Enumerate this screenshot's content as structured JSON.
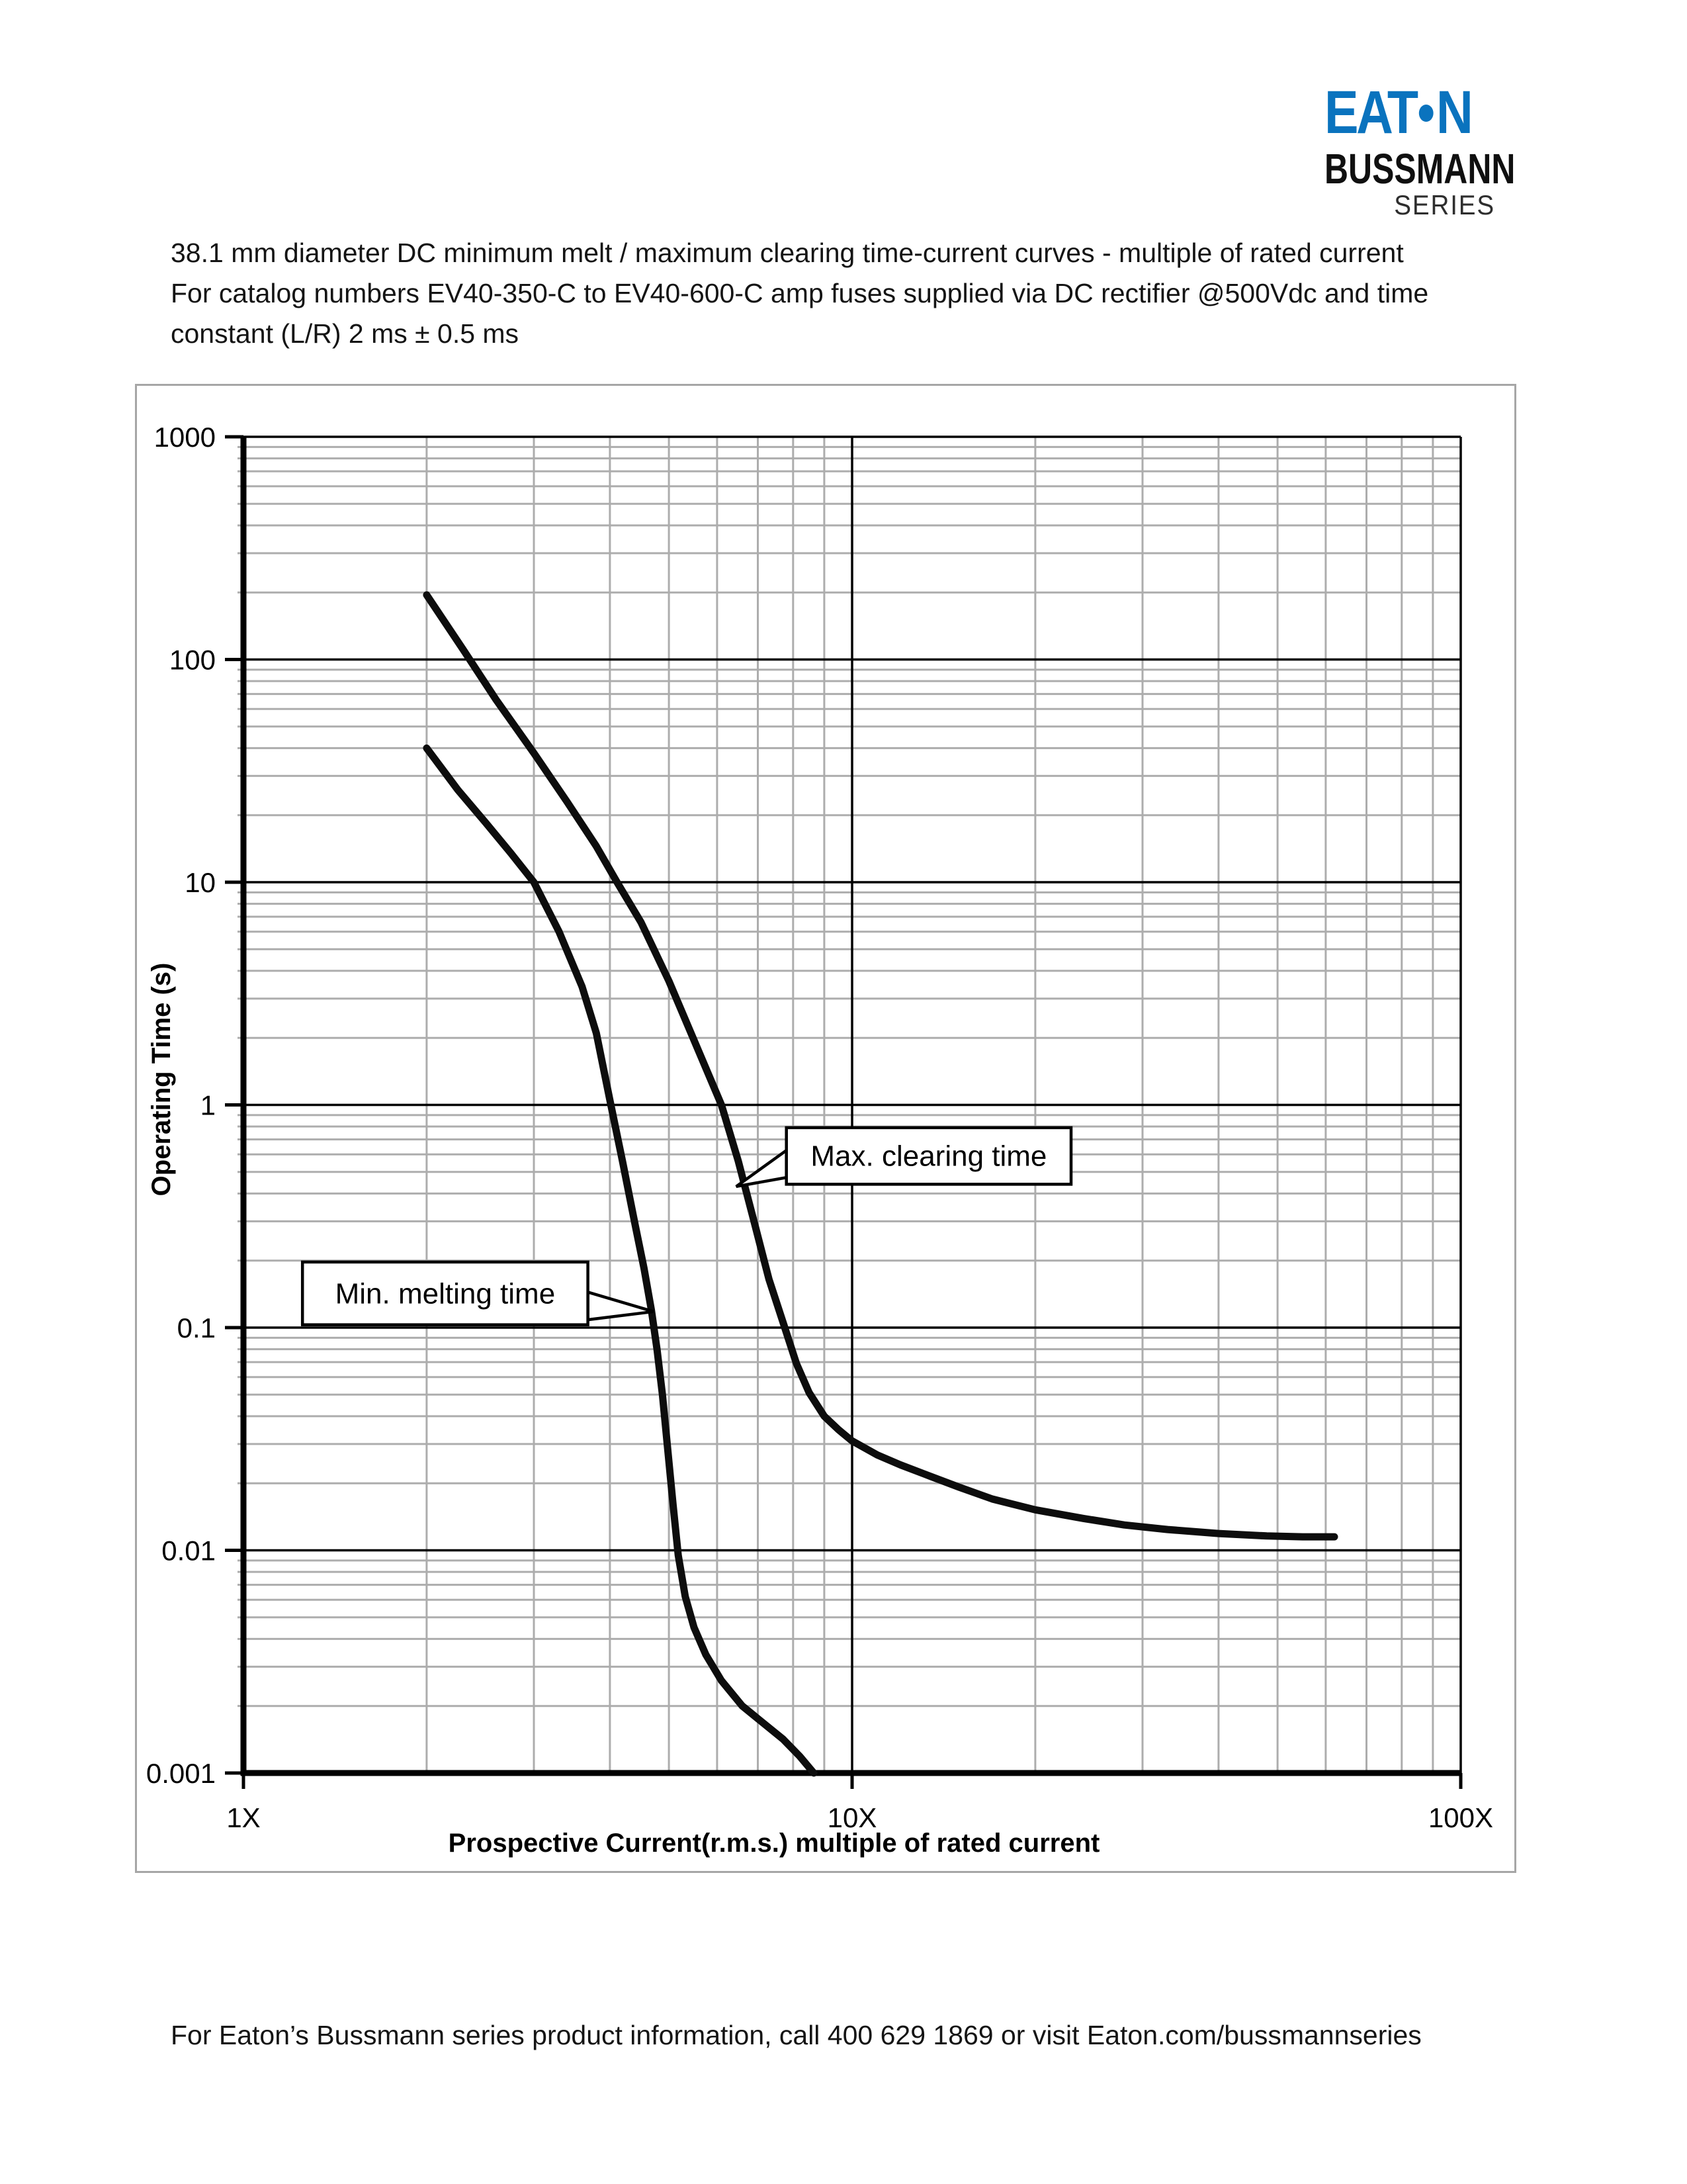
{
  "header": {
    "logo": {
      "brand": "EATON",
      "display_part1": "EAT",
      "display_part2": "N",
      "sub_line": "BUSSMANN",
      "series_line": "SERIES",
      "brand_color": "#0a73be"
    }
  },
  "title_lines": [
    "38.1 mm diameter DC minimum melt / maximum clearing time-current curves - multiple of rated current",
    "For catalog numbers EV40-350-C to EV40-600-C amp fuses supplied via DC rectifier @500Vdc and time",
    "constant (L/R) 2 ms ± 0.5 ms"
  ],
  "footer": "For Eaton’s Bussmann series product information, call 400 629 1869 or visit Eaton.com/bussmannseries",
  "chart_data": {
    "type": "line",
    "title": "",
    "legend": "none",
    "frame_color": "#a6a6a6",
    "grid": {
      "minor_color": "#adadad",
      "major_color": "#000000",
      "background": "#ffffff"
    },
    "x_axis": {
      "label": "Prospective Current(r.m.s.) multiple of rated current",
      "scale": "log",
      "min": 1,
      "max": 100,
      "ticks": [
        {
          "value": 1,
          "label": "1X"
        },
        {
          "value": 10,
          "label": "10X"
        },
        {
          "value": 100,
          "label": "100X"
        }
      ]
    },
    "y_axis": {
      "label": "Operating Time (s)",
      "scale": "log",
      "min": 0.001,
      "max": 1000,
      "ticks": [
        {
          "value": 1000,
          "label": "1000"
        },
        {
          "value": 100,
          "label": "100"
        },
        {
          "value": 10,
          "label": "10"
        },
        {
          "value": 1,
          "label": "1"
        },
        {
          "value": 0.1,
          "label": "0.1"
        },
        {
          "value": 0.01,
          "label": "0.01"
        },
        {
          "value": 0.001,
          "label": "0.001"
        }
      ]
    },
    "series": [
      {
        "name": "Min. melting time",
        "color": "#0d0d0d",
        "points": [
          [
            2.0,
            40
          ],
          [
            2.25,
            26
          ],
          [
            2.5,
            18.5
          ],
          [
            2.75,
            13.5
          ],
          [
            3.0,
            10
          ],
          [
            3.3,
            6.0
          ],
          [
            3.6,
            3.4
          ],
          [
            3.8,
            2.1
          ],
          [
            4.0,
            1.05
          ],
          [
            4.2,
            0.55
          ],
          [
            4.4,
            0.29
          ],
          [
            4.55,
            0.185
          ],
          [
            4.68,
            0.12
          ],
          [
            4.78,
            0.08
          ],
          [
            4.88,
            0.05
          ],
          [
            4.98,
            0.028
          ],
          [
            5.08,
            0.016
          ],
          [
            5.18,
            0.0095
          ],
          [
            5.32,
            0.0062
          ],
          [
            5.5,
            0.0045
          ],
          [
            5.75,
            0.0034
          ],
          [
            6.1,
            0.0026
          ],
          [
            6.6,
            0.002
          ],
          [
            7.1,
            0.0017
          ],
          [
            7.7,
            0.00142
          ],
          [
            8.2,
            0.00119
          ],
          [
            8.65,
            0.001
          ]
        ]
      },
      {
        "name": "Max. clearing time",
        "color": "#0d0d0d",
        "points": [
          [
            2.0,
            195
          ],
          [
            2.3,
            110
          ],
          [
            2.6,
            66
          ],
          [
            3.0,
            38
          ],
          [
            3.4,
            23
          ],
          [
            3.8,
            14.5
          ],
          [
            4.11,
            10
          ],
          [
            4.5,
            6.6
          ],
          [
            5.0,
            3.6
          ],
          [
            5.5,
            1.95
          ],
          [
            6.1,
            1.0
          ],
          [
            6.5,
            0.56
          ],
          [
            6.9,
            0.3
          ],
          [
            7.3,
            0.165
          ],
          [
            7.75,
            0.1
          ],
          [
            8.1,
            0.069
          ],
          [
            8.5,
            0.051
          ],
          [
            9.0,
            0.04
          ],
          [
            9.5,
            0.0348
          ],
          [
            10.0,
            0.031
          ],
          [
            11,
            0.0268
          ],
          [
            12,
            0.0242
          ],
          [
            13.5,
            0.0214
          ],
          [
            15,
            0.0192
          ],
          [
            17,
            0.017
          ],
          [
            20,
            0.0152
          ],
          [
            24,
            0.0139
          ],
          [
            28,
            0.013
          ],
          [
            33,
            0.0124
          ],
          [
            40,
            0.0119
          ],
          [
            48,
            0.0116
          ],
          [
            55,
            0.0115
          ],
          [
            62,
            0.0115
          ]
        ]
      }
    ],
    "annotations": [
      {
        "id": "min-melting",
        "text": "Min. melting time",
        "side": "right",
        "box": {
          "x1": 1.25,
          "x2": 3.68,
          "y_top": 0.197,
          "y_bottom": 0.103
        },
        "tip": [
          4.72,
          0.118
        ]
      },
      {
        "id": "max-clearing",
        "text": "Max. clearing time",
        "side": "left",
        "box": {
          "x1": 7.8,
          "x2": 22.9,
          "y_top": 0.79,
          "y_bottom": 0.44
        },
        "tip": [
          6.45,
          0.43
        ]
      }
    ]
  }
}
